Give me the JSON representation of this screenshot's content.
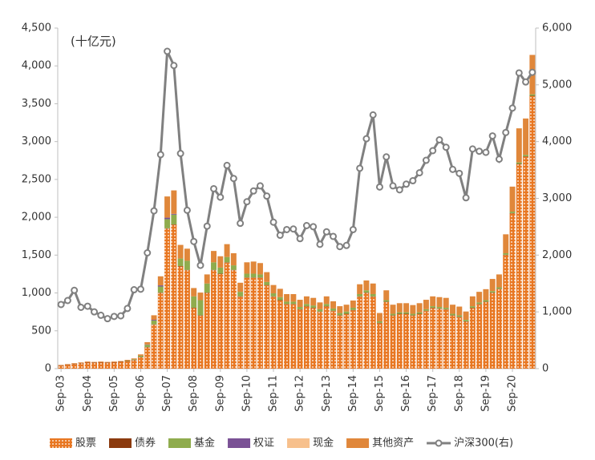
{
  "chart_data": {
    "type": "bar",
    "stacked": true,
    "annotation": "(十亿元)",
    "categories": [
      "Sep-03",
      null,
      null,
      null,
      "Sep-04",
      null,
      null,
      null,
      "Sep-05",
      null,
      null,
      null,
      "Sep-06",
      null,
      null,
      null,
      "Sep-07",
      null,
      null,
      null,
      "Sep-08",
      null,
      null,
      null,
      "Sep-09",
      null,
      null,
      null,
      "Sep-10",
      null,
      null,
      null,
      "Sep-11",
      null,
      null,
      null,
      "Sep-12",
      null,
      null,
      null,
      "Sep-13",
      null,
      null,
      null,
      "Sep-14",
      null,
      null,
      null,
      "Sep-15",
      null,
      null,
      null,
      "Sep-16",
      null,
      null,
      null,
      "Sep-17",
      null,
      null,
      null,
      "Sep-18",
      null,
      null,
      null,
      "Sep-19",
      null,
      null,
      null,
      "Sep-20",
      null,
      null,
      null
    ],
    "series": [
      {
        "name": "股票",
        "color": "#e87722",
        "pattern": "dots",
        "values": [
          40,
          50,
          60,
          70,
          80,
          75,
          80,
          75,
          80,
          85,
          95,
          110,
          150,
          280,
          580,
          1000,
          1850,
          1900,
          1350,
          1300,
          800,
          700,
          1000,
          1300,
          1250,
          1400,
          1300,
          950,
          1200,
          1200,
          1200,
          1100,
          950,
          900,
          850,
          850,
          780,
          820,
          800,
          750,
          820,
          760,
          700,
          720,
          770,
          950,
          1000,
          950,
          600,
          880,
          700,
          720,
          720,
          700,
          720,
          760,
          800,
          790,
          780,
          700,
          680,
          620,
          800,
          850,
          880,
          1000,
          1050,
          1500,
          2050,
          2700,
          2800,
          3600
        ]
      },
      {
        "name": "债券",
        "color": "#8b3a0e",
        "values": [
          5,
          5,
          5,
          5,
          5,
          5,
          5,
          5,
          5,
          5,
          5,
          5,
          5,
          5,
          5,
          5,
          5,
          5,
          5,
          5,
          5,
          5,
          5,
          5,
          5,
          5,
          5,
          5,
          5,
          5,
          5,
          5,
          5,
          5,
          5,
          5,
          5,
          5,
          5,
          5,
          5,
          5,
          5,
          5,
          5,
          5,
          5,
          5,
          5,
          5,
          5,
          5,
          5,
          5,
          5,
          5,
          5,
          5,
          5,
          5,
          5,
          5,
          5,
          5,
          5,
          5,
          5,
          5,
          5,
          5,
          5,
          5
        ]
      },
      {
        "name": "基金",
        "color": "#8fac4d",
        "values": [
          0,
          0,
          0,
          0,
          0,
          0,
          0,
          0,
          0,
          0,
          5,
          8,
          15,
          30,
          50,
          80,
          120,
          130,
          100,
          120,
          150,
          200,
          120,
          100,
          80,
          70,
          60,
          60,
          50,
          50,
          40,
          40,
          40,
          40,
          30,
          30,
          30,
          30,
          30,
          30,
          30,
          30,
          30,
          30,
          30,
          30,
          30,
          30,
          20,
          20,
          20,
          20,
          20,
          20,
          20,
          20,
          20,
          20,
          20,
          20,
          20,
          20,
          20,
          20,
          20,
          20,
          20,
          20,
          20,
          20,
          20,
          20
        ]
      },
      {
        "name": "权证",
        "color": "#7a5195",
        "values": [
          0,
          0,
          0,
          0,
          0,
          0,
          0,
          0,
          0,
          0,
          0,
          0,
          0,
          5,
          10,
          15,
          20,
          10,
          0,
          0,
          0,
          0,
          0,
          0,
          0,
          0,
          0,
          0,
          0,
          0,
          0,
          0,
          0,
          0,
          0,
          0,
          0,
          0,
          0,
          0,
          0,
          0,
          0,
          0,
          0,
          0,
          0,
          0,
          0,
          0,
          0,
          0,
          0,
          0,
          0,
          0,
          0,
          0,
          0,
          0,
          0,
          0,
          0,
          0,
          0,
          0,
          0,
          0,
          0,
          0,
          0,
          0
        ]
      },
      {
        "name": "现金",
        "color": "#f7c08c",
        "values": [
          0,
          0,
          0,
          0,
          0,
          0,
          0,
          0,
          0,
          0,
          0,
          0,
          0,
          0,
          0,
          0,
          0,
          0,
          0,
          0,
          0,
          0,
          0,
          0,
          0,
          0,
          0,
          0,
          0,
          0,
          0,
          0,
          0,
          0,
          0,
          0,
          0,
          0,
          0,
          0,
          0,
          0,
          0,
          0,
          0,
          0,
          0,
          0,
          0,
          0,
          0,
          0,
          0,
          0,
          0,
          0,
          0,
          0,
          0,
          0,
          0,
          0,
          0,
          0,
          0,
          0,
          0,
          0,
          0,
          0,
          0,
          0
        ]
      },
      {
        "name": "其他资产",
        "color": "#e0873a",
        "values": [
          5,
          6,
          8,
          8,
          9,
          9,
          9,
          9,
          9,
          10,
          11,
          12,
          18,
          30,
          60,
          120,
          280,
          310,
          180,
          160,
          110,
          100,
          120,
          150,
          150,
          170,
          160,
          120,
          150,
          160,
          150,
          130,
          110,
          110,
          100,
          100,
          95,
          100,
          100,
          90,
          100,
          95,
          90,
          90,
          95,
          130,
          130,
          140,
          110,
          130,
          120,
          120,
          120,
          115,
          120,
          125,
          130,
          130,
          130,
          120,
          115,
          110,
          130,
          140,
          145,
          160,
          170,
          250,
          330,
          450,
          480,
          520
        ]
      },
      {
        "name": "沪深300(右)",
        "color": "#808080",
        "type": "line",
        "axis": "y2",
        "values": [
          1130,
          1200,
          1380,
          1080,
          1100,
          1000,
          940,
          880,
          920,
          930,
          1060,
          1390,
          1400,
          2040,
          2780,
          3770,
          5590,
          5340,
          3790,
          2790,
          2240,
          1820,
          2510,
          3170,
          3020,
          3580,
          3350,
          2560,
          2940,
          3130,
          3220,
          3040,
          2580,
          2350,
          2450,
          2460,
          2290,
          2520,
          2500,
          2190,
          2410,
          2330,
          2150,
          2170,
          2450,
          3530,
          4050,
          4470,
          3200,
          3730,
          3220,
          3150,
          3250,
          3310,
          3450,
          3670,
          3840,
          4030,
          3900,
          3510,
          3440,
          3010,
          3870,
          3830,
          3810,
          4100,
          3690,
          4160,
          4590,
          5210,
          5050,
          5220
        ]
      }
    ],
    "ylim": [
      0,
      4500
    ],
    "yticks": [
      0,
      500,
      {
        "value": 1000,
        "label": "1,000"
      },
      {
        "value": 1500,
        "label": "1,500"
      },
      {
        "value": 2000,
        "label": "2,000"
      },
      {
        "value": 2500,
        "label": "2,500"
      },
      {
        "value": 3000,
        "label": "3,000"
      },
      {
        "value": 3500,
        "label": "3,500"
      },
      {
        "value": 4000,
        "label": "4,000"
      },
      {
        "value": 4500,
        "label": "4,500"
      }
    ],
    "y2lim": [
      0,
      6000
    ],
    "y2ticks": [
      0,
      {
        "value": 1000,
        "label": "1,000"
      },
      {
        "value": 2000,
        "label": "2,000"
      },
      {
        "value": 3000,
        "label": "3,000"
      },
      {
        "value": 4000,
        "label": "4,000"
      },
      {
        "value": 5000,
        "label": "5,000"
      },
      {
        "value": 6000,
        "label": "6,000"
      }
    ],
    "grid": false,
    "legend": "bottom"
  }
}
